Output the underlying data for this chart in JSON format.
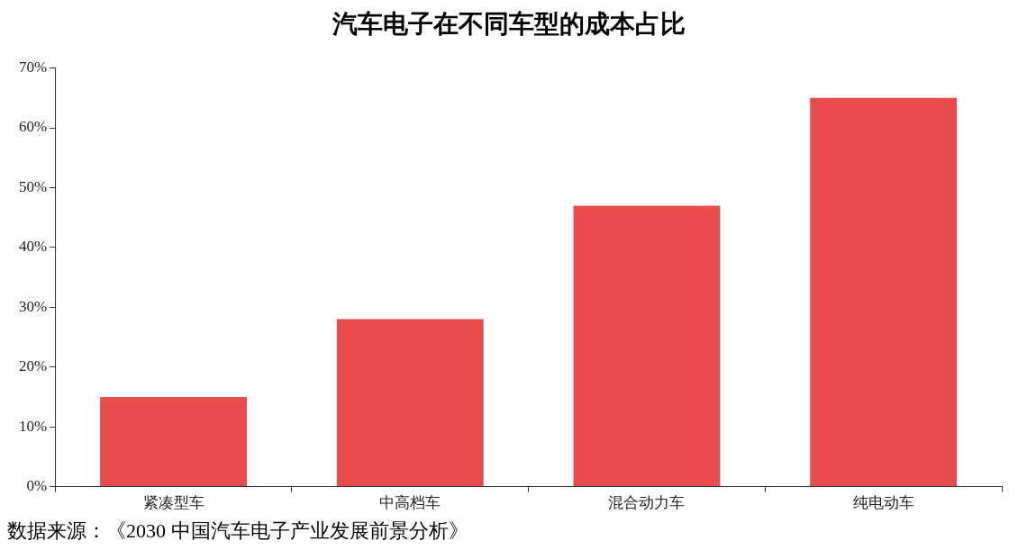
{
  "chart_data": {
    "type": "bar",
    "title": "汽车电子在不同车型的成本占比",
    "categories": [
      "紧凑型车",
      "中高档车",
      "混合动力车",
      "纯电动车"
    ],
    "values": [
      15,
      28,
      47,
      65
    ],
    "color": "#e84c4c",
    "ylim": [
      0,
      70
    ],
    "yticks": [
      {
        "value": 0,
        "label": "0%"
      },
      {
        "value": 10,
        "label": "10%"
      },
      {
        "value": 20,
        "label": "20%"
      },
      {
        "value": 30,
        "label": "30%"
      },
      {
        "value": 40,
        "label": "40%"
      },
      {
        "value": 50,
        "label": "50%"
      },
      {
        "value": 60,
        "label": "60%"
      },
      {
        "value": 70,
        "label": "70%"
      }
    ],
    "grid": false,
    "legend": false,
    "annotations": [
      "数据来源：《2030 中国汽车电子产业发展前景分析》"
    ]
  }
}
